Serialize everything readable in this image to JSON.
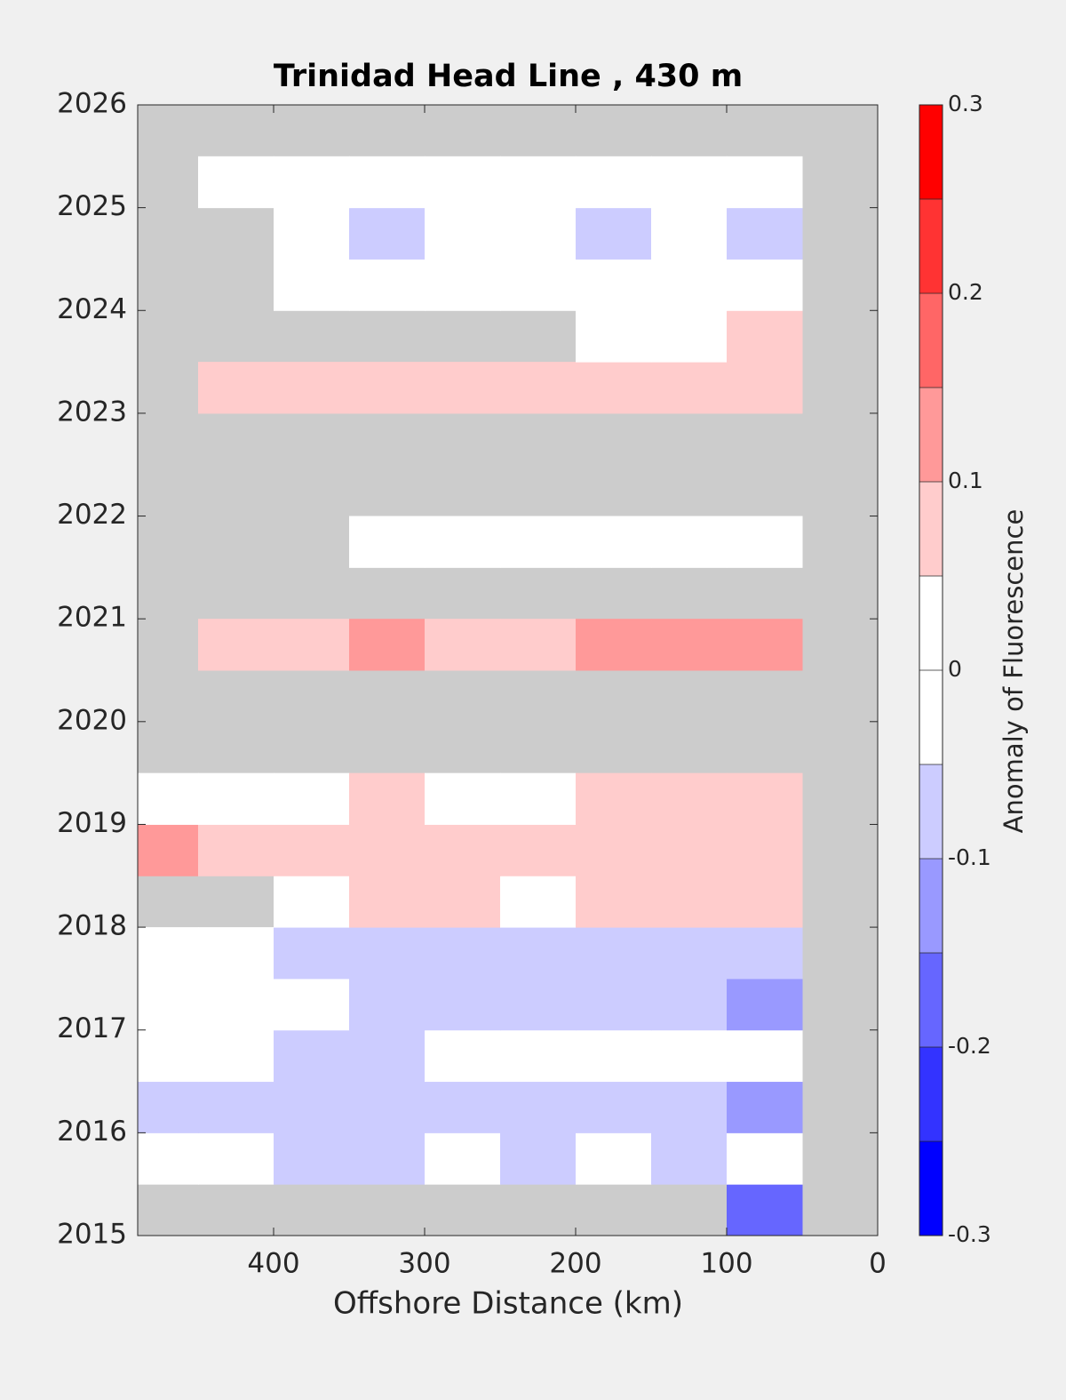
{
  "chart_data": {
    "type": "contourf",
    "title": "Trinidad Head Line , 430 m",
    "xlabel": "Offshore Distance (km)",
    "colorbar_label": "Anomaly of Fluorescence",
    "xlim": [
      490,
      0
    ],
    "xticks": [
      400,
      300,
      200,
      100,
      0
    ],
    "ylim": [
      2015,
      2026
    ],
    "yticks": [
      2015,
      2016,
      2017,
      2018,
      2019,
      2020,
      2021,
      2022,
      2023,
      2024,
      2025,
      2026
    ],
    "x": [
      475,
      425,
      375,
      325,
      275,
      225,
      175,
      125,
      75,
      25
    ],
    "y": [
      2015.25,
      2015.75,
      2016.25,
      2016.75,
      2017.25,
      2017.75,
      2018.25,
      2018.75,
      2019.25,
      2019.75,
      2020.25,
      2020.75,
      2021.25,
      2021.75,
      2022.25,
      2022.75,
      2023.25,
      2023.75,
      2024.25,
      2024.75,
      2025.25,
      2025.75
    ],
    "z": [
      [
        null,
        null,
        null,
        null,
        null,
        null,
        null,
        null,
        -0.175,
        null
      ],
      [
        0,
        0,
        -0.075,
        -0.075,
        0,
        -0.075,
        0,
        -0.075,
        0,
        null
      ],
      [
        -0.075,
        -0.075,
        -0.075,
        -0.075,
        -0.075,
        -0.075,
        -0.075,
        -0.075,
        -0.125,
        null
      ],
      [
        0,
        0,
        -0.075,
        -0.075,
        0,
        0,
        0,
        0,
        0,
        null
      ],
      [
        0,
        0,
        0,
        -0.075,
        -0.075,
        -0.075,
        -0.075,
        -0.075,
        -0.125,
        null
      ],
      [
        0,
        0,
        -0.075,
        -0.075,
        -0.075,
        -0.075,
        -0.075,
        -0.075,
        -0.075,
        null
      ],
      [
        null,
        null,
        0,
        0.075,
        0.075,
        0,
        0.075,
        0.075,
        0.075,
        null
      ],
      [
        0.125,
        0.075,
        0.075,
        0.075,
        0.075,
        0.075,
        0.075,
        0.075,
        0.075,
        null
      ],
      [
        0,
        0,
        0,
        0.075,
        0,
        0,
        0.075,
        0.075,
        0.075,
        null
      ],
      [
        null,
        null,
        null,
        null,
        null,
        null,
        null,
        null,
        null,
        null
      ],
      [
        null,
        null,
        null,
        null,
        null,
        null,
        null,
        null,
        null,
        null
      ],
      [
        null,
        0.075,
        0.075,
        0.125,
        0.075,
        0.075,
        0.125,
        0.125,
        0.125,
        null
      ],
      [
        null,
        null,
        null,
        null,
        null,
        null,
        null,
        null,
        null,
        null
      ],
      [
        null,
        null,
        null,
        0,
        0,
        0,
        0,
        0,
        0,
        null
      ],
      [
        null,
        null,
        null,
        null,
        null,
        null,
        null,
        null,
        null,
        null
      ],
      [
        null,
        null,
        null,
        null,
        null,
        null,
        null,
        null,
        null,
        null
      ],
      [
        null,
        0.075,
        0.075,
        0.075,
        0.075,
        0.075,
        0.075,
        0.075,
        0.075,
        null
      ],
      [
        null,
        null,
        null,
        null,
        null,
        null,
        0,
        0,
        0.075,
        null
      ],
      [
        null,
        null,
        0,
        0,
        0,
        0,
        0,
        0,
        0,
        null
      ],
      [
        null,
        null,
        0,
        -0.075,
        0,
        0,
        -0.075,
        0,
        -0.075,
        null
      ],
      [
        null,
        0,
        0,
        0,
        0,
        0,
        0,
        0,
        0,
        null
      ],
      [
        null,
        null,
        null,
        null,
        null,
        null,
        null,
        null,
        null,
        null
      ]
    ],
    "levels": [
      -0.3,
      -0.25,
      -0.2,
      -0.15,
      -0.1,
      -0.05,
      0,
      0.05,
      0.1,
      0.15,
      0.2,
      0.25,
      0.3
    ],
    "colors": [
      "#0000ff",
      "#3333ff",
      "#6666ff",
      "#9999ff",
      "#ccccff",
      "#ffffff",
      "#ffffff",
      "#ffcccc",
      "#ff9999",
      "#ff6666",
      "#ff3333",
      "#ff0000"
    ],
    "colorbar_ticks": [
      -0.3,
      -0.2,
      -0.1,
      0,
      0.1,
      0.2,
      0.3
    ],
    "missing_color": "#cccccc"
  }
}
